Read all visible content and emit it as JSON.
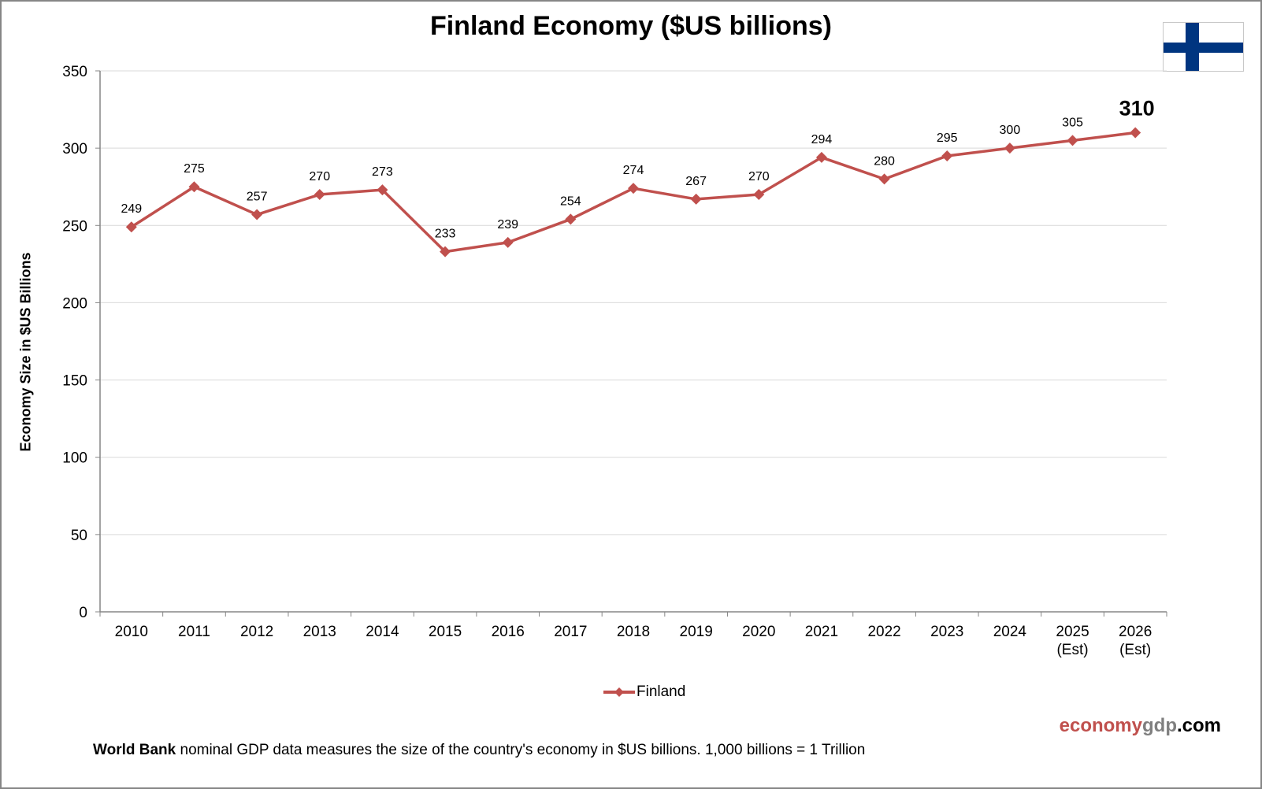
{
  "colors": {
    "series": "#C0504D",
    "gridline": "#D9D9D9",
    "axis": "#868686",
    "flag_blue": "#003580",
    "brand_gray": "#7F7F7F"
  },
  "flag_icon": "finland-flag-icon",
  "brand": {
    "part1": "economy",
    "part2": "gdp",
    "part3": ".com"
  },
  "footnote": {
    "bold": "World Bank",
    "text": " nominal  GDP data  measures  the size of the country's economy in $US  billions.  1,000 billions = 1 Trillion"
  },
  "chart_data": {
    "type": "line",
    "title": "Finland Economy ($US billions)",
    "xlabel": "",
    "ylabel": "Economy Size in $US Billions",
    "ylim": [
      0,
      350
    ],
    "yticks": [
      0,
      50,
      100,
      150,
      200,
      250,
      300,
      350
    ],
    "grid": true,
    "legend_position": "bottom",
    "categories": [
      [
        "2010"
      ],
      [
        "2011"
      ],
      [
        "2012"
      ],
      [
        "2013"
      ],
      [
        "2014"
      ],
      [
        "2015"
      ],
      [
        "2016"
      ],
      [
        "2017"
      ],
      [
        "2018"
      ],
      [
        "2019"
      ],
      [
        "2020"
      ],
      [
        "2021"
      ],
      [
        "2022"
      ],
      [
        "2023"
      ],
      [
        "2024"
      ],
      [
        "2025",
        "(Est)"
      ],
      [
        "2026",
        "(Est)"
      ]
    ],
    "series": [
      {
        "name": "Finland",
        "values": [
          249,
          275,
          257,
          270,
          273,
          233,
          239,
          254,
          274,
          267,
          270,
          294,
          280,
          295,
          300,
          305,
          310
        ],
        "labels": [
          "249",
          "275",
          "257",
          "270",
          "273",
          "233",
          "239",
          "254",
          "274",
          "267",
          "270",
          "294",
          "280",
          "295",
          "300",
          "305",
          "310"
        ]
      }
    ],
    "highlighted_label_index": 16
  }
}
